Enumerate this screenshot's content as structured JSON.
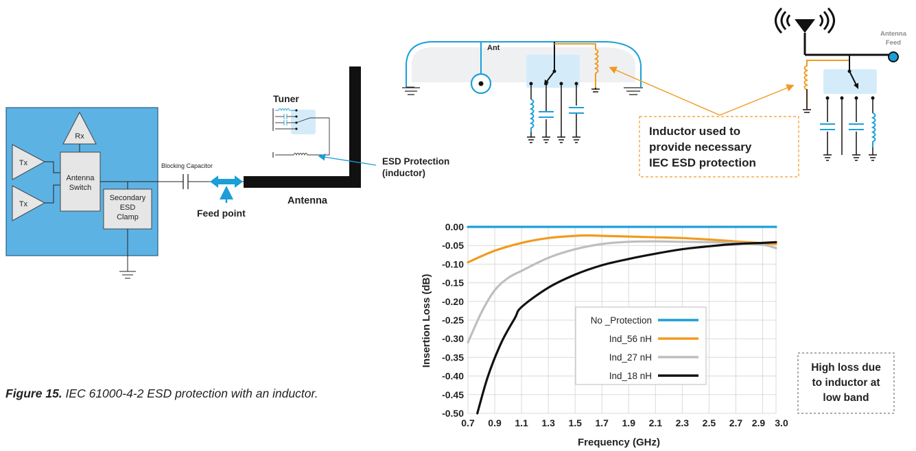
{
  "caption": {
    "figure_label": "Figure 15.",
    "text": "IEC 61000-4-2 ESD protection with an inductor."
  },
  "left_diagram": {
    "rx": "Rx",
    "tx_top": "Tx",
    "tx_bottom": "Tx",
    "antenna_switch_line1": "Antenna",
    "antenna_switch_line2": "Switch",
    "clamp_line1": "Secondary",
    "clamp_line2": "ESD",
    "clamp_line3": "Clamp",
    "blocking_capacitor": "Blocking Capacitor",
    "feed_point": "Feed point",
    "tuner": "Tuner",
    "antenna": "Antenna",
    "esd_protection_line1": "ESD Protection",
    "esd_protection_line2": "(inductor)"
  },
  "top_right": {
    "ant_label": "Ant",
    "antenna_feed_line1": "Antenna",
    "antenna_feed_line2": "Feed",
    "callout_line1": "Inductor used to",
    "callout_line2": "provide necessary",
    "callout_line3": "IEC ESD protection"
  },
  "annotation": {
    "line1": "High loss due",
    "line2": "to inductor at",
    "line3": "low band"
  },
  "colors": {
    "panel_blue": "#5DB2E4",
    "feed_blue": "#1B9ED9",
    "orange": "#F29A1F",
    "gray": "#BEBEBE",
    "black": "#111111",
    "highlight": "#D4ECFA"
  },
  "chart_data": {
    "type": "line",
    "xlabel": "Frequency (GHz)",
    "ylabel": "Insertion Loss (dB)",
    "xlim": [
      0.7,
      3.0
    ],
    "ylim": [
      -0.5,
      0.0
    ],
    "x_ticks": [
      "0.7",
      "0.9",
      "1.1",
      "1.3",
      "1.5",
      "1.7",
      "1.9",
      "2.1",
      "2.3",
      "2.5",
      "2.7",
      "2.9",
      "3.0"
    ],
    "y_ticks": [
      "0.00",
      "-0.05",
      "-0.10",
      "-0.15",
      "-0.20",
      "-0.25",
      "-0.30",
      "-0.35",
      "-0.40",
      "-0.45",
      "-0.50"
    ],
    "grid": true,
    "legend_position": "center",
    "series": [
      {
        "name": "No _Protection",
        "color": "#1B9ED9",
        "x": [
          0.7,
          3.0
        ],
        "y": [
          0.0,
          0.0
        ]
      },
      {
        "name": "Ind_56 nH",
        "color": "#F29A1F",
        "x": [
          0.7,
          0.9,
          1.1,
          1.3,
          1.5,
          1.6,
          1.7,
          1.9,
          2.1,
          2.3,
          2.5,
          2.7,
          2.9,
          3.0
        ],
        "y": [
          -0.095,
          -0.064,
          -0.043,
          -0.03,
          -0.024,
          -0.023,
          -0.024,
          -0.026,
          -0.028,
          -0.03,
          -0.034,
          -0.039,
          -0.044,
          -0.046
        ]
      },
      {
        "name": "Ind_27 nH",
        "color": "#BEBEBE",
        "x": [
          0.7,
          0.8,
          0.9,
          1.0,
          1.1,
          1.3,
          1.5,
          1.7,
          1.9,
          2.1,
          2.3,
          2.5,
          2.7,
          2.9,
          3.0
        ],
        "y": [
          -0.31,
          -0.23,
          -0.17,
          -0.137,
          -0.118,
          -0.083,
          -0.06,
          -0.046,
          -0.04,
          -0.039,
          -0.04,
          -0.041,
          -0.043,
          -0.048,
          -0.057
        ]
      },
      {
        "name": "Ind_18 nH",
        "color": "#111111",
        "x": [
          0.77,
          0.85,
          0.95,
          1.05,
          1.1,
          1.3,
          1.5,
          1.7,
          1.9,
          2.1,
          2.3,
          2.5,
          2.7,
          2.9,
          3.0
        ],
        "y": [
          -0.5,
          -0.4,
          -0.31,
          -0.245,
          -0.215,
          -0.163,
          -0.128,
          -0.103,
          -0.086,
          -0.072,
          -0.06,
          -0.052,
          -0.046,
          -0.043,
          -0.041
        ]
      }
    ]
  }
}
